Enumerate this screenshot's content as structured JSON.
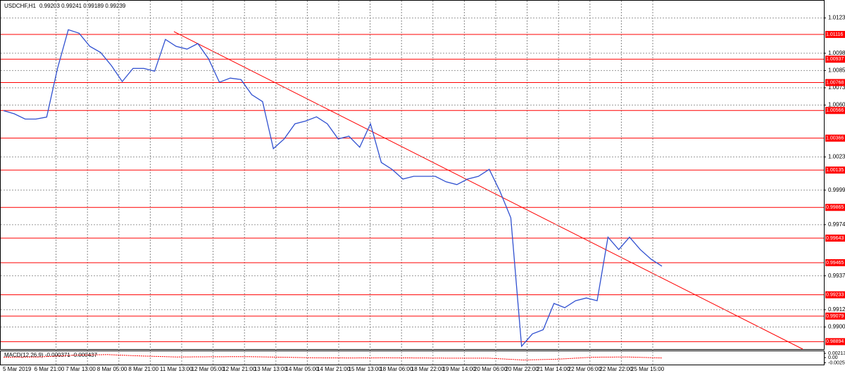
{
  "header": {
    "symbol": "USDCHF,H1",
    "ohlc": "0.99203 0.99241 0.99189 0.99239"
  },
  "chart_data": {
    "type": "line",
    "series": [
      {
        "color": "#3050d0",
        "values": [
          1.00565,
          1.00542,
          1.00504,
          1.00504,
          1.00518,
          1.00869,
          1.0115,
          1.01125,
          1.0103,
          1.00985,
          1.0089,
          1.00775,
          1.0087,
          1.0087,
          1.0085,
          1.0108,
          1.0103,
          1.0101,
          1.0105,
          1.0094,
          1.0077,
          1.008,
          1.0079,
          1.0068,
          1.0063,
          1.0029,
          1.0036,
          1.0047,
          1.0049,
          1.0052,
          1.0047,
          1.0036,
          1.0038,
          1.003,
          1.0047,
          1.0019,
          1.0014,
          1.0007,
          1.0009,
          1.0009,
          1.0009,
          1.0005,
          1.0003,
          1.0007,
          1.0009,
          1.0014,
          0.9998,
          0.9979,
          0.98861,
          0.9895,
          0.9898,
          0.9917,
          0.9914,
          0.9919,
          0.9921,
          0.9919,
          0.9965,
          0.9956,
          0.9965,
          0.9956,
          0.9949,
          0.9944
        ]
      }
    ],
    "ylim": [
      0.9884,
      1.0136
    ],
    "yticks": [
      1.01235,
      {
        "value": 1.0098,
        "label": "1.00980"
      },
      1.00855,
      {
        "value": 1.0073,
        "label": "1.00730"
      },
      1.00605,
      {
        "value": 1.0023,
        "label": "1.00230"
      },
      {
        "value": 0.9999,
        "label": "0.99990"
      },
      {
        "value": 0.9974,
        "label": "0.99740"
      },
      {
        "value": 0.9937,
        "label": "0.99370"
      },
      0.99125,
      {
        "value": 0.99,
        "label": "0.99000"
      }
    ],
    "grid": true,
    "levels": {
      "color": "#ff0000",
      "values": [
        1.01116,
        1.00937,
        1.00768,
        1.00566,
        1.00366,
        1.00135,
        0.99865,
        0.99643,
        0.99465,
        0.99233,
        0.99079,
        0.98894
      ]
    },
    "x_labels": [
      "5 Mar 2019",
      "6 Mar 21:00",
      "7 Mar 13:00",
      "8 Mar 05:00",
      "8 Mar 21:00",
      "11 Mar 13:00",
      "12 Mar 05:00",
      "12 Mar 21:00",
      "13 Mar 13:00",
      "14 Mar 05:00",
      "14 Mar 21:00",
      "15 Mar 13:00",
      "18 Mar 06:00",
      "18 Mar 22:00",
      "19 Mar 14:00",
      "20 Mar 06:00",
      "20 Mar 22:00",
      "21 Mar 14:00",
      "22 Mar 06:00",
      "22 Mar 22:00",
      "25 Mar 15:00"
    ],
    "macd": {
      "label": "MACD(12,26,9) -0.000371 -0.000437",
      "color": "#ff0000",
      "values": [
        0.0002,
        0.0003,
        0.0012,
        0.0015,
        0.0008,
        0.0003,
        0.0004,
        0.0005,
        0.0002,
        -0.0001,
        -0.0002,
        -0.0001,
        -0.0002,
        -0.0003,
        -0.0003,
        -0.0012,
        -0.0008,
        0.0002,
        0.0003,
        -0.0002
      ],
      "ylim": [
        -0.0035,
        0.0032
      ],
      "yticks": [
        0.002136,
        {
          "value": 0,
          "label": "0.00"
        },
        -0.00259
      ]
    }
  }
}
